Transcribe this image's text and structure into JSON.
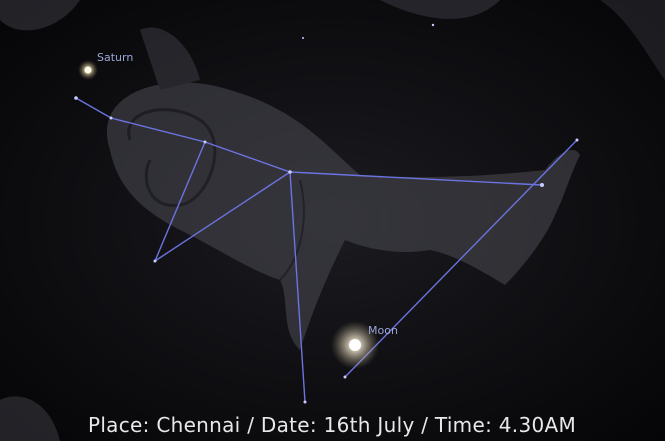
{
  "labels": {
    "saturn": "Saturn",
    "moon": "Moon"
  },
  "caption": "Place: Chennai / Date: 16th July / Time: 4.30AM"
}
